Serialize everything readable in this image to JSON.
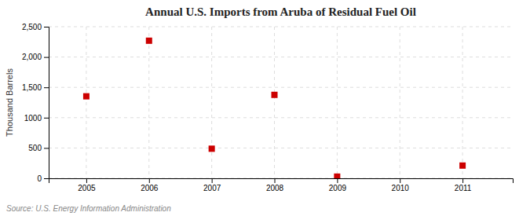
{
  "chart_data": {
    "type": "scatter",
    "title": "Annual U.S. Imports from Aruba of Residual Fuel Oil",
    "ylabel": "Thousand Barrels",
    "annotations": [
      "Source: U.S. Energy Information Administration"
    ],
    "x": [
      2005,
      2006,
      2007,
      2008,
      2009,
      2011
    ],
    "values": [
      1352,
      2269,
      488,
      1376,
      28,
      210
    ],
    "color": "#cc0000",
    "marker": "square",
    "xlim": [
      2004.4,
      2011.8
    ],
    "ylim": [
      0,
      2500
    ],
    "xticks": [
      2005,
      2006,
      2007,
      2008,
      2009,
      2010,
      2011
    ],
    "yticks": [
      0,
      500,
      1000,
      {
        "value": 1500,
        "label": "1,500"
      },
      {
        "value": 2000,
        "label": "2,000"
      },
      {
        "value": 2500,
        "label": "2,500"
      }
    ],
    "grid": true
  }
}
